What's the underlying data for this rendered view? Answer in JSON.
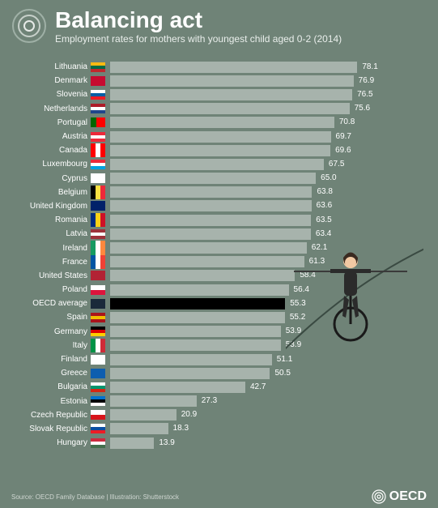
{
  "header": {
    "title": "Balancing act",
    "subtitle": "Employment rates for mothers with youngest child aged 0-2 (2014)"
  },
  "footer": {
    "source": "Source: OECD Family Database | Illustration: Shutterstock",
    "brand": "OECD"
  },
  "chart": {
    "type": "bar",
    "orientation": "horizontal",
    "xlim": [
      0,
      100
    ],
    "background": "#6f8377",
    "bar_color": "#a7b3ac",
    "highlight_bar_color": "#000000",
    "text_color": "#ffffff",
    "label_fontsize": 10,
    "value_fontsize": 10,
    "title_fontsize": 28,
    "subtitle_fontsize": 12,
    "rows": [
      {
        "label": "Lithuania",
        "value": 78.1,
        "flag": "lt"
      },
      {
        "label": "Denmark",
        "value": 76.9,
        "flag": "dk"
      },
      {
        "label": "Slovenia",
        "value": 76.5,
        "flag": "si"
      },
      {
        "label": "Netherlands",
        "value": 75.6,
        "flag": "nl"
      },
      {
        "label": "Portugal",
        "value": 70.8,
        "flag": "pt"
      },
      {
        "label": "Austria",
        "value": 69.7,
        "flag": "at"
      },
      {
        "label": "Canada",
        "value": 69.6,
        "flag": "ca"
      },
      {
        "label": "Luxembourg",
        "value": 67.5,
        "flag": "lu"
      },
      {
        "label": "Cyprus",
        "value": 65.0,
        "flag": "cy"
      },
      {
        "label": "Belgium",
        "value": 63.8,
        "flag": "be"
      },
      {
        "label": "United Kingdom",
        "value": 63.6,
        "flag": "gb"
      },
      {
        "label": "Romania",
        "value": 63.5,
        "flag": "ro"
      },
      {
        "label": "Latvia",
        "value": 63.4,
        "flag": "lv"
      },
      {
        "label": "Ireland",
        "value": 62.1,
        "flag": "ie"
      },
      {
        "label": "France",
        "value": 61.3,
        "flag": "fr"
      },
      {
        "label": "United States",
        "value": 58.4,
        "flag": "us"
      },
      {
        "label": "Poland",
        "value": 56.4,
        "flag": "pl"
      },
      {
        "label": "OECD average",
        "value": 55.3,
        "flag": "oecd",
        "highlight": true
      },
      {
        "label": "Spain",
        "value": 55.2,
        "flag": "es"
      },
      {
        "label": "Germany",
        "value": 53.9,
        "flag": "de"
      },
      {
        "label": "Italy",
        "value": 53.9,
        "flag": "it"
      },
      {
        "label": "Finland",
        "value": 51.1,
        "flag": "fi"
      },
      {
        "label": "Greece",
        "value": 50.5,
        "flag": "gr"
      },
      {
        "label": "Bulgaria",
        "value": 42.7,
        "flag": "bg"
      },
      {
        "label": "Estonia",
        "value": 27.3,
        "flag": "ee"
      },
      {
        "label": "Czech Republic",
        "value": 20.9,
        "flag": "cz"
      },
      {
        "label": "Slovak Republic",
        "value": 18.3,
        "flag": "sk"
      },
      {
        "label": "Hungary",
        "value": 13.9,
        "flag": "hu"
      }
    ]
  },
  "flags": {
    "lt": {
      "type": "3h",
      "c": [
        "#fdb913",
        "#006a44",
        "#c1272d"
      ]
    },
    "dk": {
      "type": "solid",
      "c": "#c60c30"
    },
    "si": {
      "type": "3h",
      "c": [
        "#ffffff",
        "#005da4",
        "#ed1c24"
      ]
    },
    "nl": {
      "type": "3h",
      "c": [
        "#ae1c28",
        "#ffffff",
        "#21468b"
      ]
    },
    "pt": {
      "type": "2v",
      "c": [
        "#006600",
        "#ff0000"
      ],
      "w": [
        0.4,
        0.6
      ]
    },
    "at": {
      "type": "3h",
      "c": [
        "#ed2939",
        "#ffffff",
        "#ed2939"
      ]
    },
    "ca": {
      "type": "3v",
      "c": [
        "#ff0000",
        "#ffffff",
        "#ff0000"
      ]
    },
    "lu": {
      "type": "3h",
      "c": [
        "#ed2939",
        "#ffffff",
        "#00a1de"
      ]
    },
    "cy": {
      "type": "solid",
      "c": "#ffffff"
    },
    "be": {
      "type": "3v",
      "c": [
        "#000000",
        "#fae042",
        "#ed2939"
      ]
    },
    "gb": {
      "type": "solid",
      "c": "#012169"
    },
    "ro": {
      "type": "3v",
      "c": [
        "#002b7f",
        "#fcd116",
        "#ce1126"
      ]
    },
    "lv": {
      "type": "3h",
      "c": [
        "#9e3039",
        "#ffffff",
        "#9e3039"
      ]
    },
    "ie": {
      "type": "3v",
      "c": [
        "#169b62",
        "#ffffff",
        "#ff883e"
      ]
    },
    "fr": {
      "type": "3v",
      "c": [
        "#0055a4",
        "#ffffff",
        "#ef4135"
      ]
    },
    "us": {
      "type": "solid",
      "c": "#b22234"
    },
    "pl": {
      "type": "2h",
      "c": [
        "#ffffff",
        "#dc143c"
      ]
    },
    "oecd": {
      "type": "solid",
      "c": "#1a2a3a"
    },
    "es": {
      "type": "3h",
      "c": [
        "#aa151b",
        "#f1bf00",
        "#aa151b"
      ]
    },
    "de": {
      "type": "3h",
      "c": [
        "#000000",
        "#dd0000",
        "#ffce00"
      ]
    },
    "it": {
      "type": "3v",
      "c": [
        "#009246",
        "#ffffff",
        "#ce2b37"
      ]
    },
    "fi": {
      "type": "solid",
      "c": "#ffffff"
    },
    "gr": {
      "type": "solid",
      "c": "#0d5eaf"
    },
    "bg": {
      "type": "3h",
      "c": [
        "#ffffff",
        "#00966e",
        "#d62612"
      ]
    },
    "ee": {
      "type": "3h",
      "c": [
        "#0072ce",
        "#000000",
        "#ffffff"
      ]
    },
    "cz": {
      "type": "2h",
      "c": [
        "#ffffff",
        "#d7141a"
      ]
    },
    "sk": {
      "type": "3h",
      "c": [
        "#ffffff",
        "#0b4ea2",
        "#ee1c25"
      ]
    },
    "hu": {
      "type": "3h",
      "c": [
        "#cd2a3e",
        "#ffffff",
        "#436f4d"
      ]
    }
  },
  "illustration": {
    "arc_color": "#3a4a42",
    "skin": "#f2c9a3",
    "hair": "#3a2a20",
    "suit": "#2b2b2b",
    "wheel": "#1a1a1a",
    "pole": "#3a3a3a"
  }
}
